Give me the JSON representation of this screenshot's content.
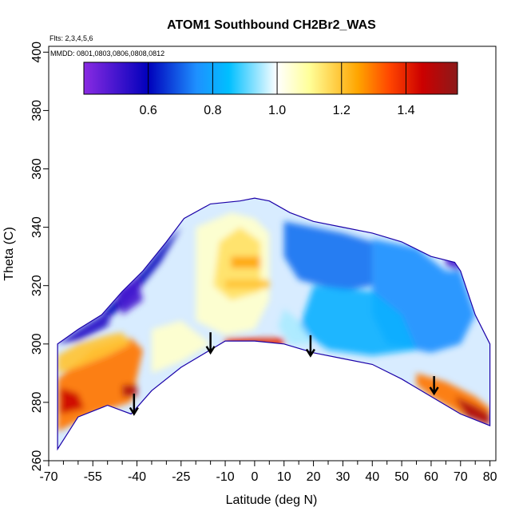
{
  "chart_data": {
    "type": "heatmap",
    "title": "ATOM1 Southbound CH2Br2_WAS",
    "annotations": [
      "Flts: 2,3,4,5,6",
      "MMDD: 0801,0803,0806,0808,0812"
    ],
    "xlabel": "Latitude (deg N)",
    "ylabel": "Theta (C)",
    "xlim": [
      -70,
      82
    ],
    "ylim": [
      260,
      402
    ],
    "x_ticks": [
      -70,
      -55,
      -40,
      -25,
      -10,
      0,
      10,
      20,
      30,
      40,
      50,
      60,
      70,
      80
    ],
    "x_tick_labels": [
      "-70",
      "-55",
      "-40",
      "-25",
      "-10",
      "0",
      "10",
      "20",
      "30",
      "40",
      "50",
      "60",
      "70",
      "80"
    ],
    "x_minor_ticks": [
      -65,
      -60,
      -50,
      -45,
      -35,
      -30,
      -20,
      -15,
      -5,
      5,
      15,
      25,
      35,
      45,
      55,
      65,
      75
    ],
    "y_ticks": [
      260,
      280,
      300,
      320,
      340,
      360,
      380,
      400
    ],
    "y_tick_labels": [
      "260",
      "280",
      "300",
      "320",
      "340",
      "360",
      "380",
      "400"
    ],
    "colorbar": {
      "ticks": [
        0.6,
        0.8,
        1.0,
        1.2,
        1.4
      ],
      "tick_labels": [
        "0.6",
        "0.8",
        "1.0",
        "1.2",
        "1.4"
      ],
      "range": [
        0.4,
        1.56
      ],
      "colors": [
        "#8a2be2",
        "#0000bb",
        "#1e90ff",
        "#00bfff",
        "#ffffff",
        "#ffff99",
        "#ffa500",
        "#ff4500",
        "#cc0000",
        "#8b1a1a"
      ],
      "stops": [
        0.4,
        0.6,
        0.75,
        0.85,
        1.0,
        1.1,
        1.25,
        1.35,
        1.45,
        1.56
      ]
    },
    "boundary_top": [
      [
        -67,
        300
      ],
      [
        -60,
        305
      ],
      [
        -52,
        310
      ],
      [
        -45,
        318
      ],
      [
        -38,
        325
      ],
      [
        -30,
        335
      ],
      [
        -24,
        343
      ],
      [
        -15,
        348
      ],
      [
        -5,
        349
      ],
      [
        0,
        350
      ],
      [
        5,
        349
      ],
      [
        12,
        345
      ],
      [
        20,
        342
      ],
      [
        30,
        340
      ],
      [
        40,
        338
      ],
      [
        50,
        335
      ],
      [
        60,
        330
      ],
      [
        68,
        328
      ],
      [
        70,
        325
      ]
    ],
    "boundary_bottom": [
      [
        -67,
        264
      ],
      [
        -60,
        275
      ],
      [
        -50,
        279
      ],
      [
        -42,
        276
      ],
      [
        -35,
        284
      ],
      [
        -25,
        292
      ],
      [
        -15,
        298
      ],
      [
        -10,
        301
      ],
      [
        0,
        301
      ],
      [
        10,
        300
      ],
      [
        20,
        297
      ],
      [
        30,
        295
      ],
      [
        40,
        293
      ],
      [
        50,
        288
      ],
      [
        60,
        282
      ],
      [
        70,
        276
      ],
      [
        80,
        272
      ]
    ],
    "boundary_right": [
      [
        70,
        325
      ],
      [
        75,
        310
      ],
      [
        80,
        300
      ],
      [
        80,
        272
      ]
    ],
    "color_zones": [
      {
        "points": [
          [
            -67,
            288
          ],
          [
            -55,
            298
          ],
          [
            -42,
            302
          ],
          [
            -38,
            298
          ],
          [
            -42,
            280
          ],
          [
            -55,
            276
          ],
          [
            -67,
            270
          ]
        ],
        "value": 1.3
      },
      {
        "points": [
          [
            -67,
            296
          ],
          [
            -60,
            300
          ],
          [
            -50,
            303
          ],
          [
            -45,
            304
          ],
          [
            -42,
            300
          ],
          [
            -50,
            296
          ],
          [
            -60,
            292
          ],
          [
            -67,
            290
          ]
        ],
        "value": 1.2
      },
      {
        "points": [
          [
            -66,
            285
          ],
          [
            -60,
            283
          ],
          [
            -58,
            278
          ],
          [
            -66,
            276
          ]
        ],
        "value": 1.45
      },
      {
        "points": [
          [
            -45,
            286
          ],
          [
            -40,
            286
          ],
          [
            -40,
            282
          ],
          [
            -45,
            282
          ]
        ],
        "value": 1.5
      },
      {
        "points": [
          [
            -10,
            302
          ],
          [
            10,
            302
          ],
          [
            10,
            299
          ],
          [
            -10,
            299
          ]
        ],
        "value": 1.4
      },
      {
        "points": [
          [
            -2,
            300
          ],
          [
            4,
            300
          ],
          [
            3,
            298
          ],
          [
            -1,
            298
          ]
        ],
        "value": 1.55
      },
      {
        "points": [
          [
            55,
            290
          ],
          [
            65,
            287
          ],
          [
            75,
            282
          ],
          [
            80,
            278
          ],
          [
            80,
            272
          ],
          [
            70,
            276
          ],
          [
            60,
            282
          ],
          [
            55,
            286
          ]
        ],
        "value": 1.3
      },
      {
        "points": [
          [
            68,
            282
          ],
          [
            75,
            279
          ],
          [
            80,
            276
          ],
          [
            80,
            272
          ],
          [
            72,
            275
          ]
        ],
        "value": 1.5
      },
      {
        "points": [
          [
            -35,
            305
          ],
          [
            -25,
            308
          ],
          [
            -15,
            300
          ],
          [
            -25,
            294
          ],
          [
            -35,
            290
          ]
        ],
        "value": 1.05
      },
      {
        "points": [
          [
            -20,
            340
          ],
          [
            -8,
            345
          ],
          [
            0,
            343
          ],
          [
            5,
            338
          ],
          [
            5,
            315
          ],
          [
            0,
            305
          ],
          [
            -10,
            303
          ],
          [
            -20,
            308
          ]
        ],
        "value": 1.05
      },
      {
        "points": [
          [
            -12,
            335
          ],
          [
            -5,
            340
          ],
          [
            2,
            335
          ],
          [
            2,
            318
          ],
          [
            -8,
            315
          ],
          [
            -14,
            320
          ]
        ],
        "value": 1.15
      },
      {
        "points": [
          [
            -8,
            330
          ],
          [
            2,
            330
          ],
          [
            2,
            326
          ],
          [
            -8,
            326
          ]
        ],
        "value": 1.25
      },
      {
        "points": [
          [
            -10,
            322
          ],
          [
            5,
            322
          ],
          [
            5,
            319
          ],
          [
            -10,
            319
          ]
        ],
        "value": 1.2
      },
      {
        "points": [
          [
            -67,
            300
          ],
          [
            -60,
            305
          ],
          [
            -52,
            310
          ],
          [
            -48,
            313
          ],
          [
            -50,
            306
          ],
          [
            -60,
            301
          ]
        ],
        "value": 0.55
      },
      {
        "points": [
          [
            -52,
            310
          ],
          [
            -45,
            318
          ],
          [
            -38,
            325
          ],
          [
            -30,
            335
          ],
          [
            -25,
            340
          ],
          [
            -32,
            328
          ],
          [
            -40,
            318
          ],
          [
            -48,
            310
          ]
        ],
        "value": 0.6
      },
      {
        "points": [
          [
            -47,
            318
          ],
          [
            -40,
            323
          ],
          [
            -38,
            315
          ],
          [
            -45,
            310
          ]
        ],
        "value": 0.5
      },
      {
        "points": [
          [
            10,
            342
          ],
          [
            20,
            340
          ],
          [
            30,
            338
          ],
          [
            40,
            335
          ],
          [
            40,
            320
          ],
          [
            30,
            318
          ],
          [
            15,
            322
          ],
          [
            10,
            330
          ]
        ],
        "value": 0.72
      },
      {
        "points": [
          [
            40,
            336
          ],
          [
            55,
            333
          ],
          [
            65,
            325
          ],
          [
            70,
            325
          ],
          [
            75,
            310
          ],
          [
            70,
            300
          ],
          [
            60,
            297
          ],
          [
            45,
            300
          ],
          [
            40,
            310
          ]
        ],
        "value": 0.75
      },
      {
        "points": [
          [
            20,
            320
          ],
          [
            40,
            318
          ],
          [
            50,
            310
          ],
          [
            55,
            298
          ],
          [
            40,
            296
          ],
          [
            25,
            298
          ],
          [
            15,
            305
          ]
        ],
        "value": 0.82
      },
      {
        "points": [
          [
            65,
            332
          ],
          [
            70,
            328
          ],
          [
            70,
            325
          ],
          [
            65,
            327
          ]
        ],
        "value": 0.5
      },
      {
        "points": [
          [
            10,
            312
          ],
          [
            15,
            308
          ],
          [
            20,
            300
          ],
          [
            12,
            300
          ],
          [
            8,
            306
          ]
        ],
        "value": 0.95
      }
    ],
    "arrows": [
      {
        "x": -41,
        "y_start": 283,
        "y_end": 276
      },
      {
        "x": -15,
        "y_start": 304,
        "y_end": 297
      },
      {
        "x": 19,
        "y_start": 303,
        "y_end": 296
      },
      {
        "x": 61,
        "y_start": 289,
        "y_end": 283
      }
    ],
    "grid": false,
    "legend": "top"
  }
}
